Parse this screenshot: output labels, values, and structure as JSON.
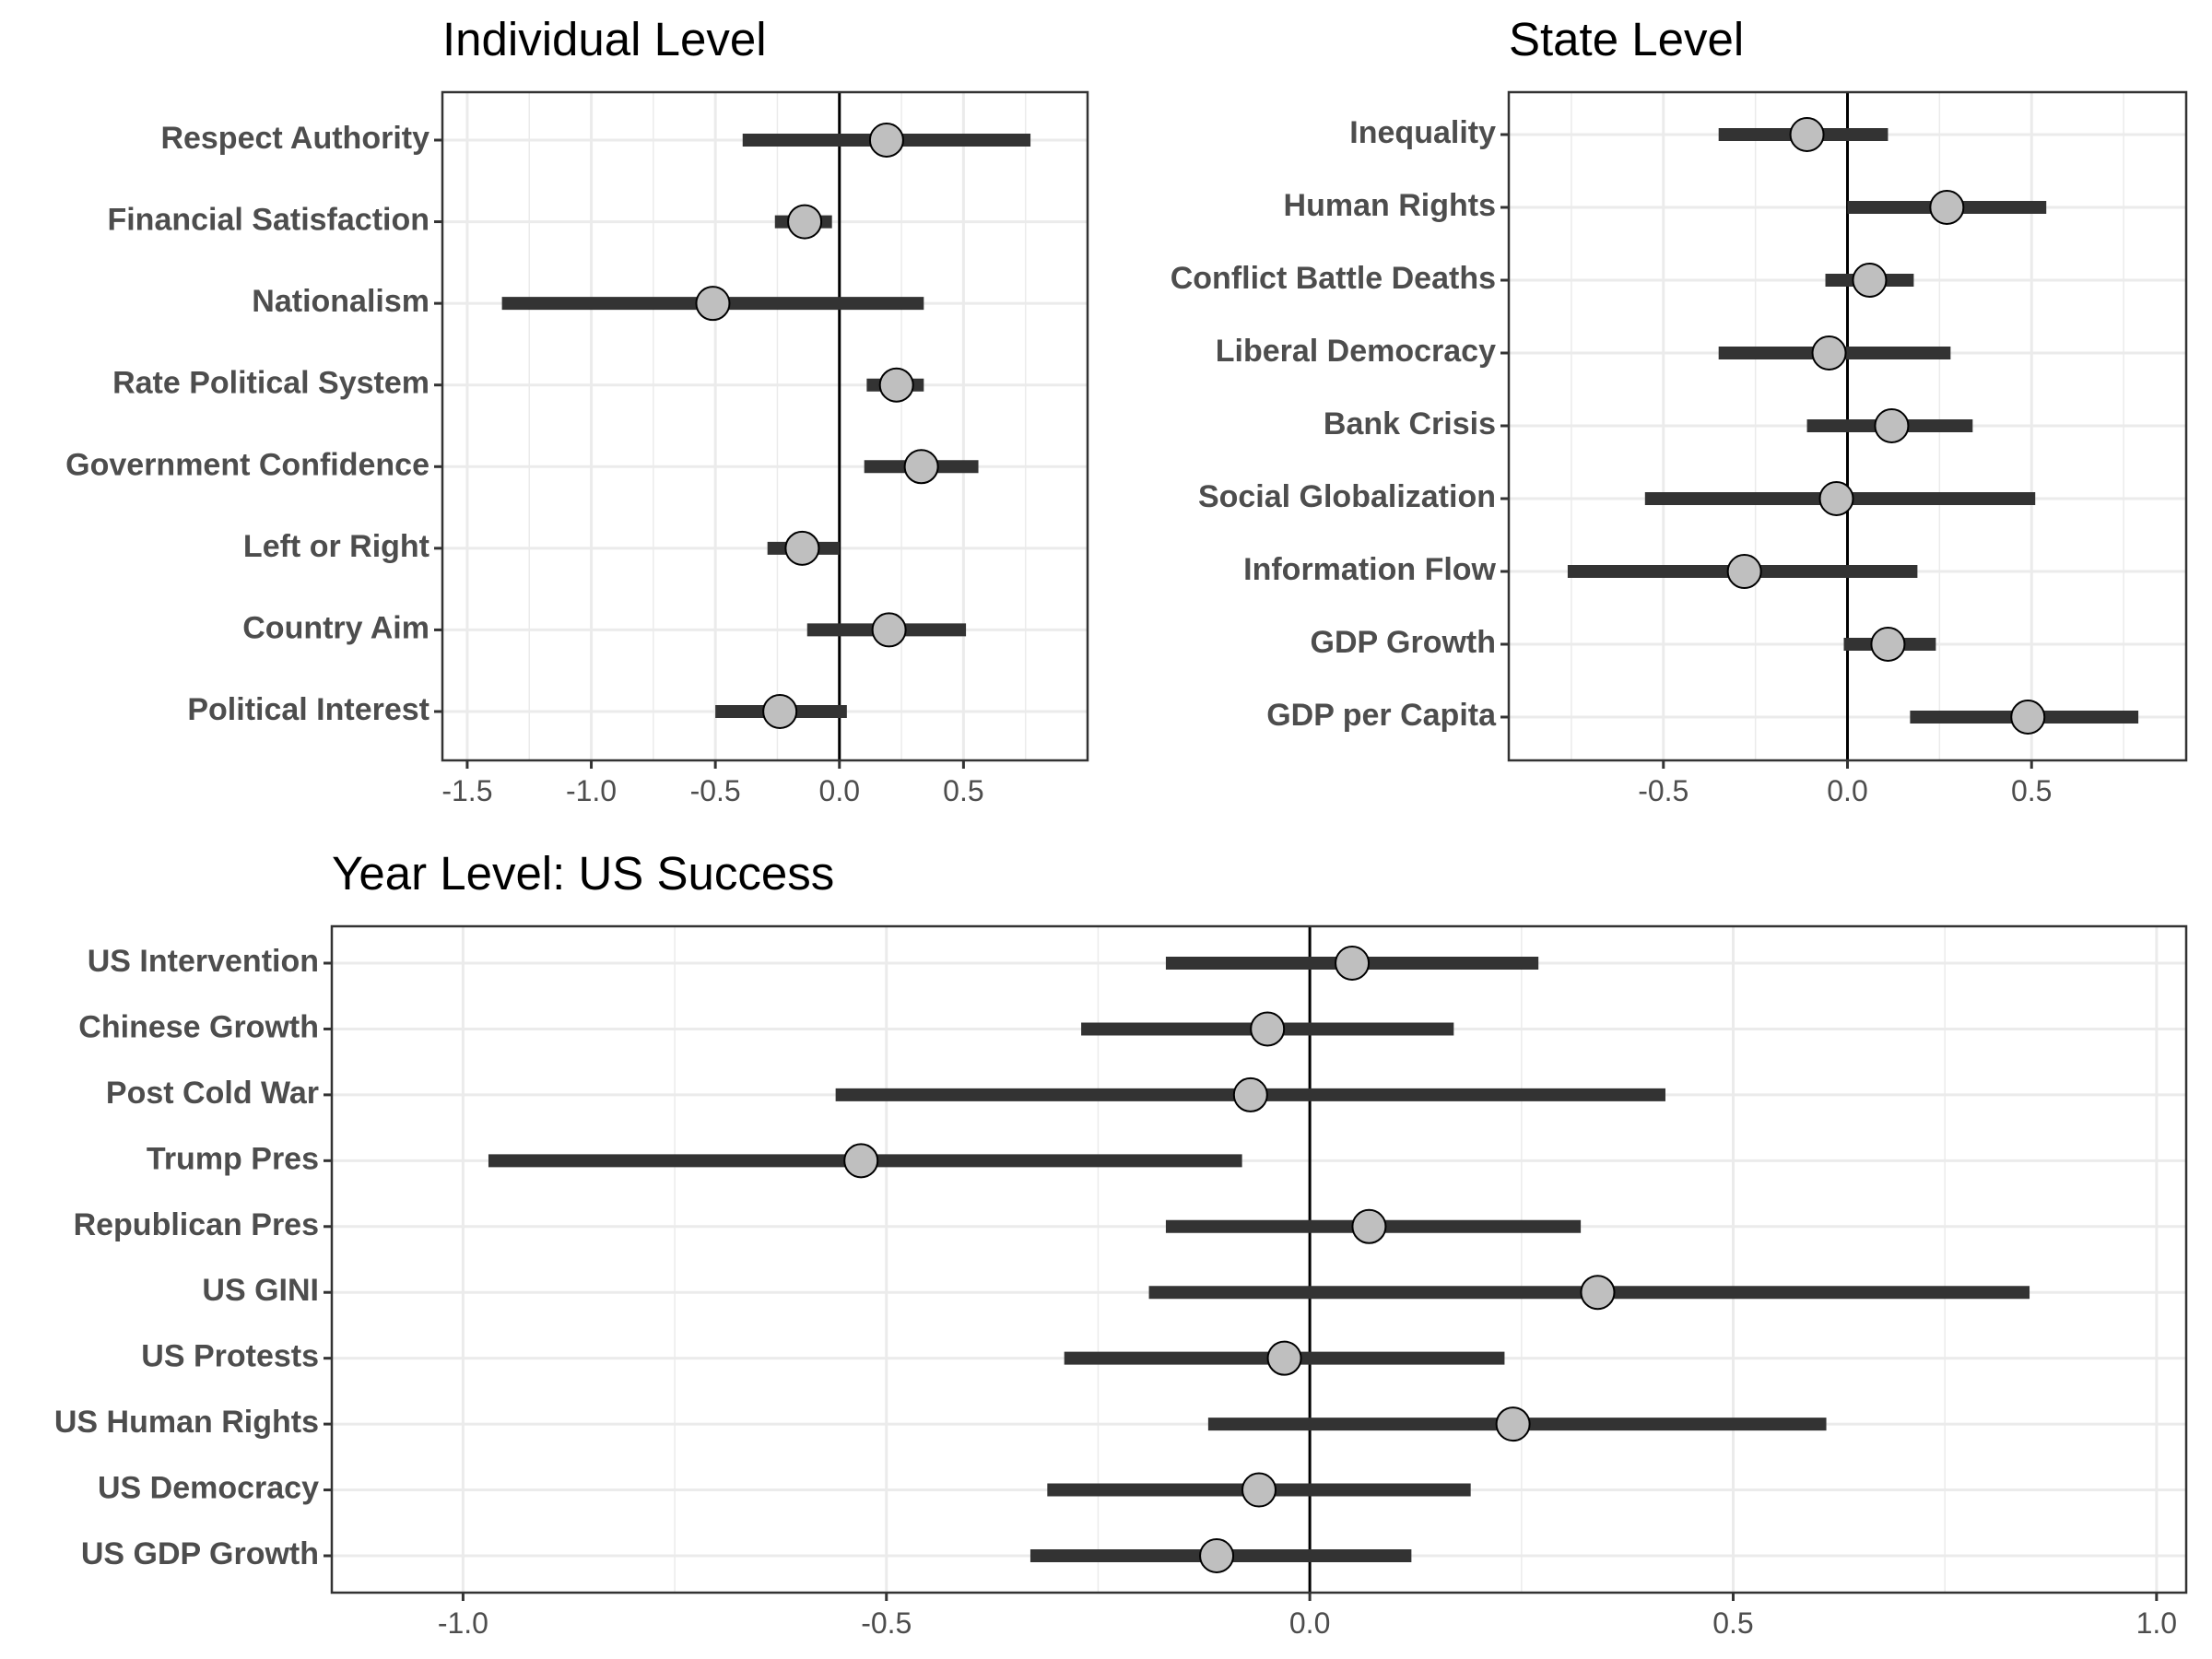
{
  "chart_data": [
    {
      "type": "scatter",
      "title": "Individual Level",
      "xlabel": "",
      "ylabel": "",
      "xlim": [
        -1.6,
        1.0
      ],
      "xticks": [
        -1.5,
        -1.0,
        -0.5,
        0.0,
        0.5
      ],
      "xtick_labels": [
        "-1.5",
        "-1.0",
        "-0.5",
        "0.0",
        "0.5"
      ],
      "grid": true,
      "categories": [
        "Respect Authority",
        "Financial Satisfaction",
        "Nationalism",
        "Rate Political System",
        "Government Confidence",
        "Left or Right",
        "Country Aim",
        "Political Interest"
      ],
      "estimates": [
        0.19,
        -0.14,
        -0.51,
        0.23,
        0.33,
        -0.15,
        0.2,
        -0.24
      ],
      "lower": [
        -0.39,
        -0.26,
        -1.36,
        0.11,
        0.1,
        -0.29,
        -0.13,
        -0.5
      ],
      "upper": [
        0.77,
        -0.03,
        0.34,
        0.34,
        0.56,
        0.0,
        0.51,
        0.03
      ]
    },
    {
      "type": "scatter",
      "title": "State Level",
      "xlabel": "",
      "ylabel": "",
      "xlim": [
        -0.92,
        0.92
      ],
      "xticks": [
        -0.5,
        0.0,
        0.5
      ],
      "xtick_labels": [
        "-0.5",
        "0.0",
        "0.5"
      ],
      "grid": true,
      "categories": [
        "Inequality",
        "Human Rights",
        "Conflict Battle Deaths",
        "Liberal Democracy",
        "Bank Crisis",
        "Social Globalization",
        "Information Flow",
        "GDP Growth",
        "GDP per Capita"
      ],
      "estimates": [
        -0.11,
        0.27,
        0.06,
        -0.05,
        0.12,
        -0.03,
        -0.28,
        0.11,
        0.49
      ],
      "lower": [
        -0.35,
        0.0,
        -0.06,
        -0.35,
        -0.11,
        -0.55,
        -0.76,
        -0.01,
        0.17
      ],
      "upper": [
        0.11,
        0.54,
        0.18,
        0.28,
        0.34,
        0.51,
        0.19,
        0.24,
        0.79
      ]
    },
    {
      "type": "scatter",
      "title": "Year Level: US Success",
      "xlabel": "",
      "ylabel": "",
      "xlim": [
        -1.155,
        1.035
      ],
      "xticks": [
        -1.0,
        -0.5,
        0.0,
        0.5,
        1.0
      ],
      "xtick_labels": [
        "-1.0",
        "-0.5",
        "0.0",
        "0.5",
        "1.0"
      ],
      "grid": true,
      "categories": [
        "US Intervention",
        "Chinese Growth",
        "Post Cold War",
        "Trump Pres",
        "Republican Pres",
        "US GINI",
        "US Protests",
        "US Human Rights",
        "US Democracy",
        "US GDP Growth"
      ],
      "estimates": [
        0.05,
        -0.05,
        -0.07,
        -0.53,
        0.07,
        0.34,
        -0.03,
        0.24,
        -0.06,
        -0.11
      ],
      "lower": [
        -0.17,
        -0.27,
        -0.56,
        -0.97,
        -0.17,
        -0.19,
        -0.29,
        -0.12,
        -0.31,
        -0.33
      ],
      "upper": [
        0.27,
        0.17,
        0.42,
        -0.08,
        0.32,
        0.85,
        0.23,
        0.61,
        0.19,
        0.12
      ]
    }
  ]
}
